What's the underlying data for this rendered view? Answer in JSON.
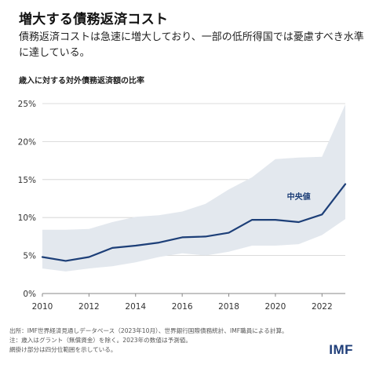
{
  "header": {
    "title": "増大する債務返済コスト",
    "subtitle": "債務返済コストは急速に増大しており、一部の低所得国では憂慮すべき水準に達している。"
  },
  "chart_data": {
    "type": "area",
    "title": "増大する債務返済コスト",
    "ylabel": "歳入に対する対外債務返済額の比率",
    "xlabel": "",
    "x": [
      2010,
      2011,
      2012,
      2013,
      2014,
      2015,
      2016,
      2017,
      2018,
      2019,
      2020,
      2021,
      2022,
      2023
    ],
    "xlim": [
      2010,
      2023
    ],
    "ylim": [
      0,
      25
    ],
    "x_ticks": [
      "2010",
      "2012",
      "2014",
      "2016",
      "2018",
      "2020",
      "2022"
    ],
    "x_tick_values": [
      2010,
      2012,
      2014,
      2016,
      2018,
      2020,
      2022
    ],
    "y_ticks": [
      "0%",
      "5%",
      "10%",
      "15%",
      "20%",
      "25%"
    ],
    "y_tick_values": [
      0,
      5,
      10,
      15,
      20,
      25
    ],
    "grid": true,
    "series": [
      {
        "name": "中央値",
        "kind": "line",
        "color": "#1d3f78",
        "values": [
          4.8,
          4.3,
          4.8,
          6.0,
          6.3,
          6.7,
          7.4,
          7.5,
          8.0,
          9.7,
          9.7,
          9.4,
          10.4,
          14.4
        ]
      },
      {
        "name": "",
        "kind": "band",
        "color": "#e3e8ee",
        "lower": [
          3.3,
          2.9,
          3.3,
          3.6,
          4.1,
          4.8,
          5.3,
          5.0,
          5.5,
          6.3,
          6.3,
          6.5,
          7.7,
          9.8
        ],
        "upper": [
          8.4,
          8.4,
          8.5,
          9.4,
          10.1,
          10.3,
          10.8,
          11.8,
          13.7,
          15.3,
          17.7,
          17.9,
          18.0,
          24.9
        ]
      }
    ],
    "annotations": [
      {
        "text": "中央値",
        "x": 2021.0,
        "y": 12.4
      }
    ]
  },
  "footer": {
    "source": "出所：IMF世界経済見通しデータベース（2023年10月）、世界銀行国際債務統計、IMF職員による計算。",
    "note1": "注：歳入はグラント（無償資金）を除く。2023年の数値は予測値。",
    "note2": "網掛け部分は四分位範囲を示している。"
  },
  "brand": {
    "logo_text": "IMF",
    "logo_color": "#1e3d78"
  }
}
